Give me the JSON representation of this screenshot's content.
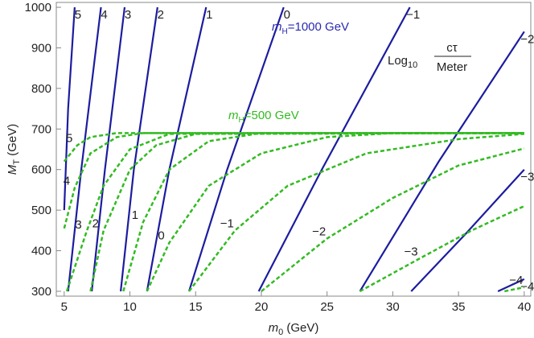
{
  "chart_data": {
    "type": "line",
    "xlabel": {
      "main": "m",
      "sub": "0",
      "tail": " (GeV)"
    },
    "ylabel": {
      "main": "M",
      "sub": "T",
      "tail": " (GeV)"
    },
    "xlim": [
      4.4,
      40.5
    ],
    "ylim": [
      288,
      1012
    ],
    "xticks": [
      5,
      10,
      15,
      20,
      25,
      30,
      35,
      40
    ],
    "yticks": [
      300,
      400,
      500,
      600,
      700,
      800,
      900,
      1000
    ],
    "annotations": [
      {
        "main": "m",
        "sub": "H",
        "tail": "=1000 GeV",
        "color": "#2a2ab0"
      },
      {
        "main": "m",
        "sub": "H",
        "tail": "=500 GeV",
        "color": "#33bb22"
      }
    ],
    "legend_title": {
      "main": "Log",
      "sub": "10",
      "numerator": "cτ",
      "denominator": "Meter"
    },
    "series": [
      {
        "name": "5",
        "color": "#1c1ca0",
        "dashed": false,
        "x": [
          5,
          5.3,
          5.8
        ],
        "values": [
          500,
          750,
          1000
        ]
      },
      {
        "name": "4",
        "color": "#1c1ca0",
        "dashed": false,
        "x": [
          5.3,
          6.3,
          7.8
        ],
        "values": [
          300,
          600,
          1000
        ]
      },
      {
        "name": "3",
        "color": "#1c1ca0",
        "dashed": false,
        "x": [
          7.1,
          8.1,
          9.6
        ],
        "values": [
          300,
          600,
          1000
        ]
      },
      {
        "name": "2",
        "color": "#1c1ca0",
        "dashed": false,
        "x": [
          9.3,
          10.3,
          12.1
        ],
        "values": [
          300,
          600,
          1000
        ]
      },
      {
        "name": "1",
        "color": "#1c1ca0",
        "dashed": false,
        "x": [
          11.3,
          13.0,
          15.8
        ],
        "values": [
          300,
          600,
          1000
        ]
      },
      {
        "name": "0",
        "color": "#1c1ca0",
        "dashed": false,
        "x": [
          14.5,
          17.4,
          21.7
        ],
        "values": [
          300,
          600,
          1000
        ]
      },
      {
        "name": "−1",
        "color": "#1c1ca0",
        "dashed": false,
        "x": [
          19.8,
          24.6,
          31.3
        ],
        "values": [
          300,
          600,
          1000
        ]
      },
      {
        "name": "−2",
        "color": "#1c1ca0",
        "dashed": false,
        "x": [
          27.5,
          33.5,
          40
        ],
        "values": [
          300,
          620,
          940
        ]
      },
      {
        "name": "−3",
        "color": "#1c1ca0",
        "dashed": false,
        "x": [
          31.4,
          35.5,
          40
        ],
        "values": [
          300,
          440,
          600
        ]
      },
      {
        "name": "−4",
        "color": "#1c1ca0",
        "dashed": false,
        "x": [
          38,
          40
        ],
        "values": [
          300,
          330
        ]
      },
      {
        "name": "5",
        "color": "#33bb22",
        "dashed": true,
        "x": [
          5,
          6,
          7,
          9,
          40
        ],
        "values": [
          620,
          660,
          680,
          690,
          690
        ]
      },
      {
        "name": "4",
        "color": "#33bb22",
        "dashed": true,
        "x": [
          5,
          5.8,
          7,
          9,
          11,
          40
        ],
        "values": [
          455,
          555,
          640,
          680,
          690,
          690
        ]
      },
      {
        "name": "3",
        "color": "#33bb22",
        "dashed": true,
        "x": [
          5.2,
          6.7,
          8,
          10,
          13,
          40
        ],
        "values": [
          300,
          447,
          560,
          650,
          688,
          690
        ]
      },
      {
        "name": "2",
        "color": "#33bb22",
        "dashed": true,
        "x": [
          7,
          8,
          10,
          12,
          15,
          40
        ],
        "values": [
          300,
          450,
          600,
          660,
          688,
          690
        ]
      },
      {
        "name": "1",
        "color": "#33bb22",
        "dashed": true,
        "x": [
          9.5,
          11,
          13,
          16,
          20,
          40
        ],
        "values": [
          300,
          470,
          600,
          670,
          690,
          690
        ]
      },
      {
        "name": "0",
        "color": "#33bb22",
        "dashed": true,
        "x": [
          11.3,
          13,
          16,
          20,
          25,
          30,
          40
        ],
        "values": [
          300,
          420,
          560,
          640,
          680,
          690,
          690
        ]
      },
      {
        "name": "−1",
        "color": "#33bb22",
        "dashed": true,
        "x": [
          14.5,
          18,
          22,
          28,
          35,
          40
        ],
        "values": [
          300,
          450,
          560,
          640,
          675,
          688
        ]
      },
      {
        "name": "−2",
        "color": "#33bb22",
        "dashed": true,
        "x": [
          20,
          25,
          30,
          35,
          40
        ],
        "values": [
          300,
          430,
          530,
          610,
          652
        ]
      },
      {
        "name": "−3",
        "color": "#33bb22",
        "dashed": true,
        "x": [
          27.5,
          32,
          36,
          40
        ],
        "values": [
          300,
          380,
          450,
          510
        ]
      },
      {
        "name": "−4",
        "color": "#33bb22",
        "dashed": true,
        "x": [
          38.5,
          40
        ],
        "values": [
          300,
          310
        ]
      }
    ]
  }
}
